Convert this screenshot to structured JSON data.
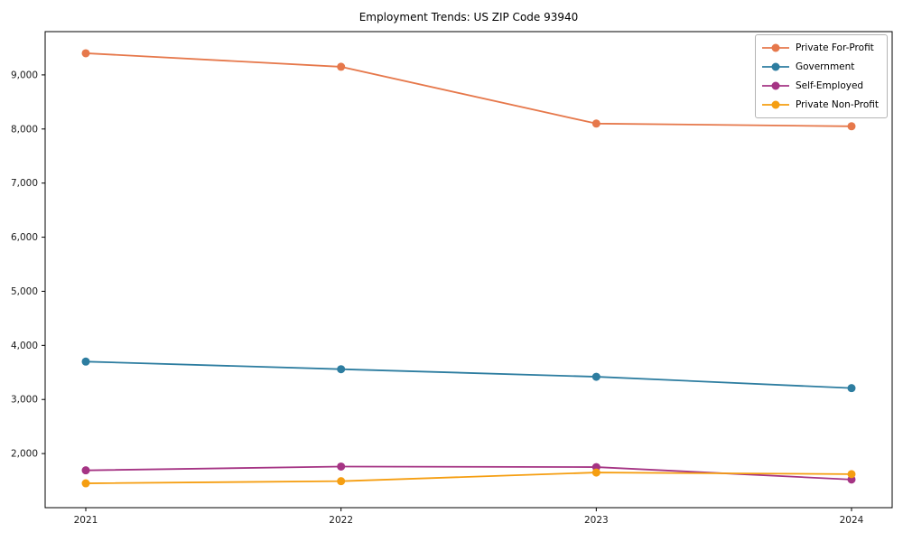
{
  "chart_data": {
    "type": "line",
    "title": "Employment Trends: US ZIP Code 93940",
    "xlabel": "",
    "ylabel": "",
    "categories": [
      "2021",
      "2022",
      "2023",
      "2024"
    ],
    "series": [
      {
        "name": "Private For-Profit",
        "color": "#E6784B",
        "values": [
          9400,
          9150,
          8100,
          8050
        ]
      },
      {
        "name": "Government",
        "color": "#2D7DA0",
        "values": [
          3700,
          3560,
          3420,
          3210
        ]
      },
      {
        "name": "Self-Employed",
        "color": "#A53484",
        "values": [
          1690,
          1760,
          1750,
          1520
        ]
      },
      {
        "name": "Private Non-Profit",
        "color": "#F59E11",
        "values": [
          1450,
          1490,
          1650,
          1620
        ]
      }
    ],
    "ylim": [
      1000,
      9800
    ],
    "yticks": [
      2000,
      3000,
      4000,
      5000,
      6000,
      7000,
      8000,
      9000
    ],
    "grid": false,
    "legend_position": "upper right",
    "axis_color": "#000000",
    "tick_label_color": "#1a1a1a"
  }
}
